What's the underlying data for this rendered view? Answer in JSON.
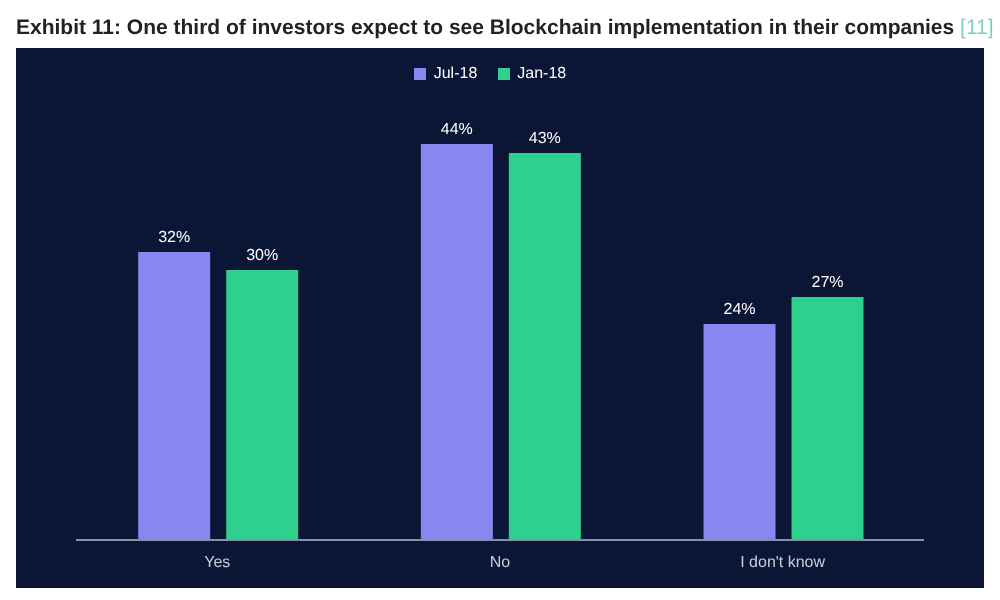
{
  "chart_data": {
    "type": "bar",
    "title": "Exhibit 11: One third of investors expect to see Blockchain implementation in their companies",
    "annotations": [
      "[11]"
    ],
    "categories": [
      "Yes",
      "No",
      "I don't know"
    ],
    "series": [
      {
        "name": "Jul-18",
        "color": "#8a86f0",
        "values": [
          32,
          44,
          24
        ],
        "value_labels": [
          "32%",
          "44%",
          "24%"
        ]
      },
      {
        "name": "Jan-18",
        "color": "#2fcf8e",
        "values": [
          30,
          43,
          27
        ],
        "value_labels": [
          "30%",
          "43%",
          "27%"
        ]
      }
    ],
    "legend": "top",
    "grid": false
  }
}
